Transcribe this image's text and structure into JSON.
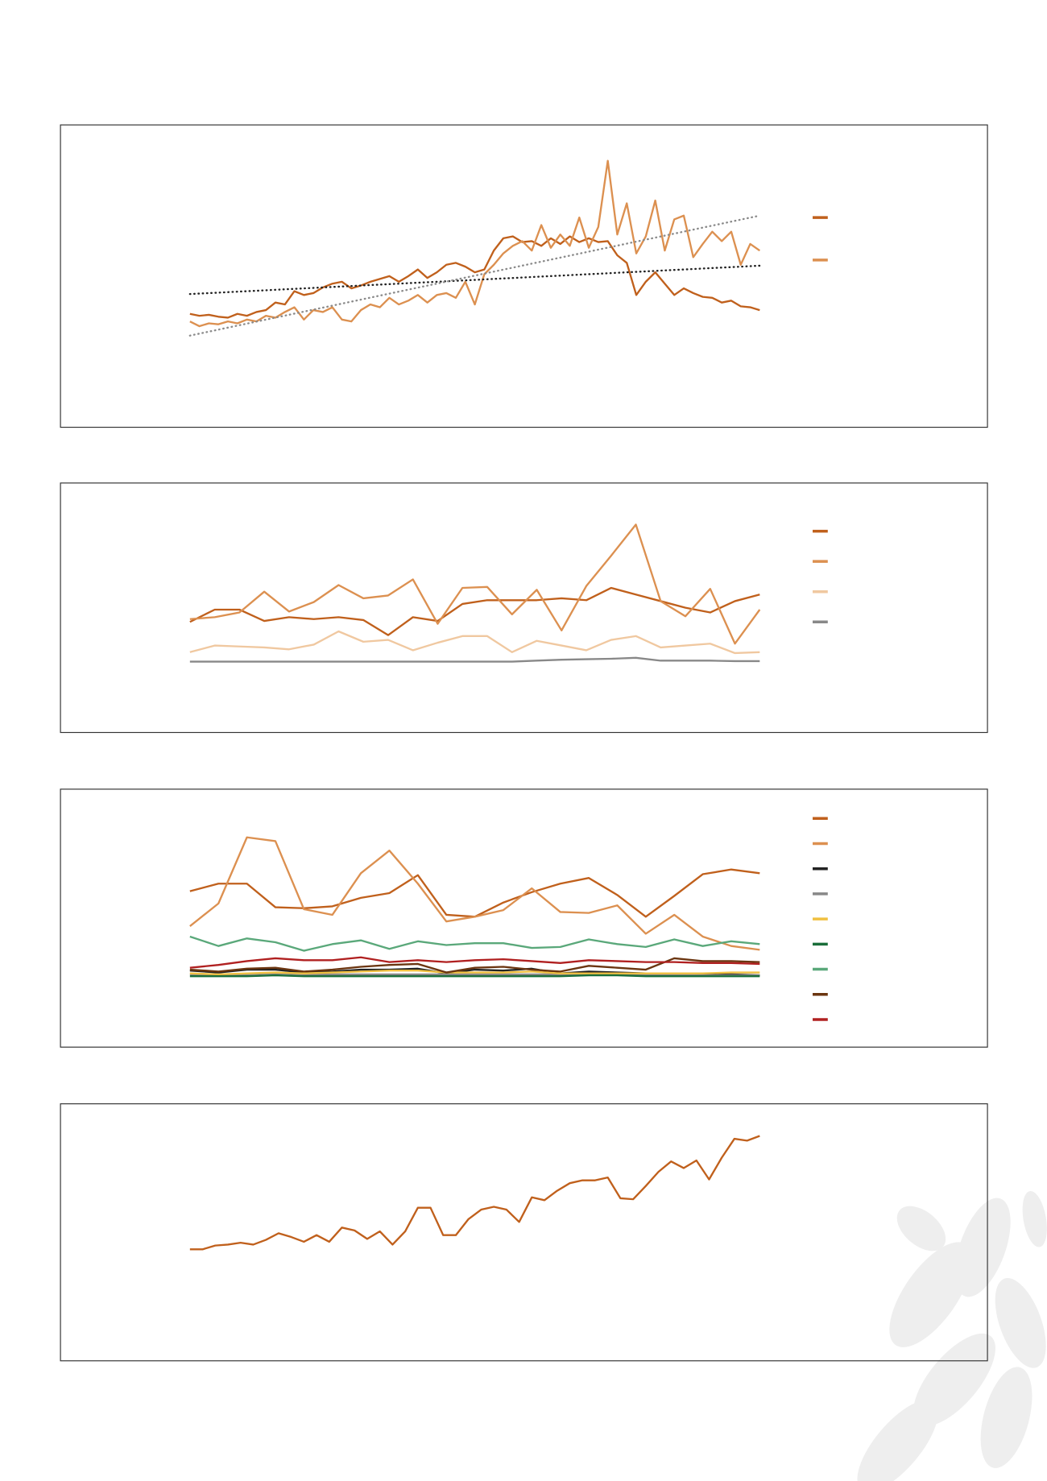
{
  "chart_data": [
    {
      "type": "line",
      "ylim": [
        0,
        120
      ],
      "series": [
        {
          "color": "#c0601c",
          "values": [
            34,
            33,
            33.5,
            32.5,
            32,
            34,
            33,
            35,
            36,
            40,
            39,
            46,
            44,
            45,
            48,
            50,
            51,
            47.5,
            49,
            51,
            52.5,
            54,
            51,
            54,
            57.5,
            53,
            56,
            60,
            61,
            59,
            56,
            57.5,
            67.5,
            74,
            75,
            72,
            72.5,
            70,
            74,
            71,
            75,
            72,
            74,
            72,
            72.5,
            65,
            61,
            44,
            51,
            56,
            50,
            44,
            47.5,
            45,
            43,
            42.5,
            40,
            41,
            38,
            37.5,
            36
          ]
        },
        {
          "color": "#dc9050",
          "values": [
            30,
            27.5,
            29,
            28.5,
            30,
            29,
            31,
            30,
            33,
            32,
            35,
            37.5,
            31,
            36,
            35,
            37.5,
            31,
            30,
            36,
            39,
            37.5,
            42.5,
            39,
            41,
            44,
            40,
            44,
            45,
            42.5,
            51,
            39,
            55,
            60,
            66,
            70,
            72.5,
            67.5,
            81,
            69,
            76,
            70,
            85,
            69,
            80,
            115,
            76,
            92.5,
            66,
            75,
            94,
            67.5,
            84,
            86,
            64,
            71,
            77.5,
            72.5,
            77.5,
            60,
            71,
            67.5
          ]
        }
      ],
      "trendlines": [
        {
          "color": "#222222",
          "values": [
            44.5,
            59.5
          ]
        },
        {
          "color": "#8a8a8a",
          "values": [
            22.5,
            86
          ]
        }
      ]
    },
    {
      "type": "line",
      "ylim": [
        0,
        150
      ],
      "series": [
        {
          "color": "#c0601c",
          "values": [
            42,
            55,
            55,
            43,
            47,
            45,
            47,
            44,
            28,
            47,
            43,
            61,
            65,
            65,
            65,
            67,
            65,
            78,
            71,
            64,
            57,
            52,
            64,
            71
          ]
        },
        {
          "color": "#dc9050",
          "values": [
            45,
            47,
            52,
            74,
            53,
            63,
            81,
            67,
            70,
            87,
            40,
            78,
            79,
            50,
            76,
            33,
            80,
            112,
            145,
            64,
            48,
            77,
            19,
            55
          ]
        },
        {
          "color": "#f0c8a0",
          "values": [
            10,
            17,
            16,
            15,
            13,
            18,
            32,
            21,
            23,
            12,
            20,
            27,
            27,
            10,
            22,
            17,
            12,
            23,
            27,
            15,
            17,
            19,
            9,
            10
          ]
        },
        {
          "color": "#888888",
          "values": [
            0,
            0,
            0,
            0,
            0,
            0,
            0,
            0,
            0,
            0,
            0,
            0,
            0,
            0,
            1,
            2,
            2.5,
            3,
            4,
            1,
            1,
            1,
            0.5,
            0.5
          ]
        }
      ]
    },
    {
      "type": "line",
      "ylim": [
        0,
        160
      ],
      "series": [
        {
          "color": "#c0601c",
          "values": [
            92,
            100,
            100,
            75,
            74,
            76,
            85,
            90,
            109,
            67,
            65,
            80,
            91,
            100,
            106,
            88,
            65,
            87,
            110,
            115,
            111
          ]
        },
        {
          "color": "#dc9050",
          "values": [
            55,
            79,
            149,
            145,
            73,
            67,
            111,
            135,
            100,
            60,
            65,
            72,
            95,
            70,
            69,
            77,
            47,
            67,
            44,
            34,
            30
          ]
        },
        {
          "color": "#222222",
          "values": [
            8,
            6,
            9,
            9,
            6,
            7,
            9,
            9,
            10,
            5,
            9,
            8,
            10,
            5,
            7,
            6,
            5,
            4,
            4,
            4,
            3
          ]
        },
        {
          "color": "#888888",
          "values": [
            4,
            4,
            4,
            5,
            4,
            4,
            4,
            4,
            4,
            4,
            4,
            4,
            4,
            4,
            4,
            4,
            4,
            4,
            3,
            3,
            3
          ]
        },
        {
          "color": "#f0c040",
          "values": [
            5,
            4,
            5,
            6,
            5,
            6,
            7,
            8,
            8,
            6,
            6,
            6,
            7,
            5,
            5,
            5,
            5,
            5,
            5,
            6,
            6
          ]
        },
        {
          "color": "#1a6e3a",
          "values": [
            2,
            2,
            2,
            3,
            2,
            2,
            2,
            2,
            2,
            2,
            2,
            2,
            2,
            2,
            3,
            3,
            2,
            2,
            2,
            2,
            2
          ]
        },
        {
          "color": "#5aa87a",
          "values": [
            44,
            34,
            42,
            38,
            29,
            36,
            40,
            31,
            39,
            35,
            37,
            37,
            32,
            33,
            41,
            36,
            33,
            41,
            34,
            39,
            36
          ]
        },
        {
          "color": "#6b3510",
          "values": [
            9,
            7,
            10,
            11,
            7,
            9,
            12,
            14,
            15,
            6,
            11,
            12,
            9,
            7,
            13,
            11,
            9,
            21,
            18,
            18,
            17
          ]
        },
        {
          "color": "#b02020",
          "values": [
            11,
            14,
            18,
            21,
            19,
            19,
            22,
            17,
            19,
            17,
            19,
            20,
            18,
            16,
            19,
            18,
            17,
            17,
            16,
            16,
            15
          ]
        }
      ]
    },
    {
      "type": "line",
      "ylim": [
        0,
        160
      ],
      "series": [
        {
          "color": "#c0601c",
          "values": [
            28,
            28,
            32,
            33,
            35,
            33,
            38,
            45,
            41,
            36,
            43,
            36,
            51,
            48,
            39,
            47,
            33,
            47,
            72,
            72,
            43,
            43,
            60,
            70,
            73,
            70,
            57,
            83,
            80,
            90,
            98,
            101,
            101,
            104,
            82,
            81,
            95,
            110,
            121,
            114,
            122,
            102,
            125,
            145,
            143,
            148
          ]
        }
      ]
    }
  ]
}
